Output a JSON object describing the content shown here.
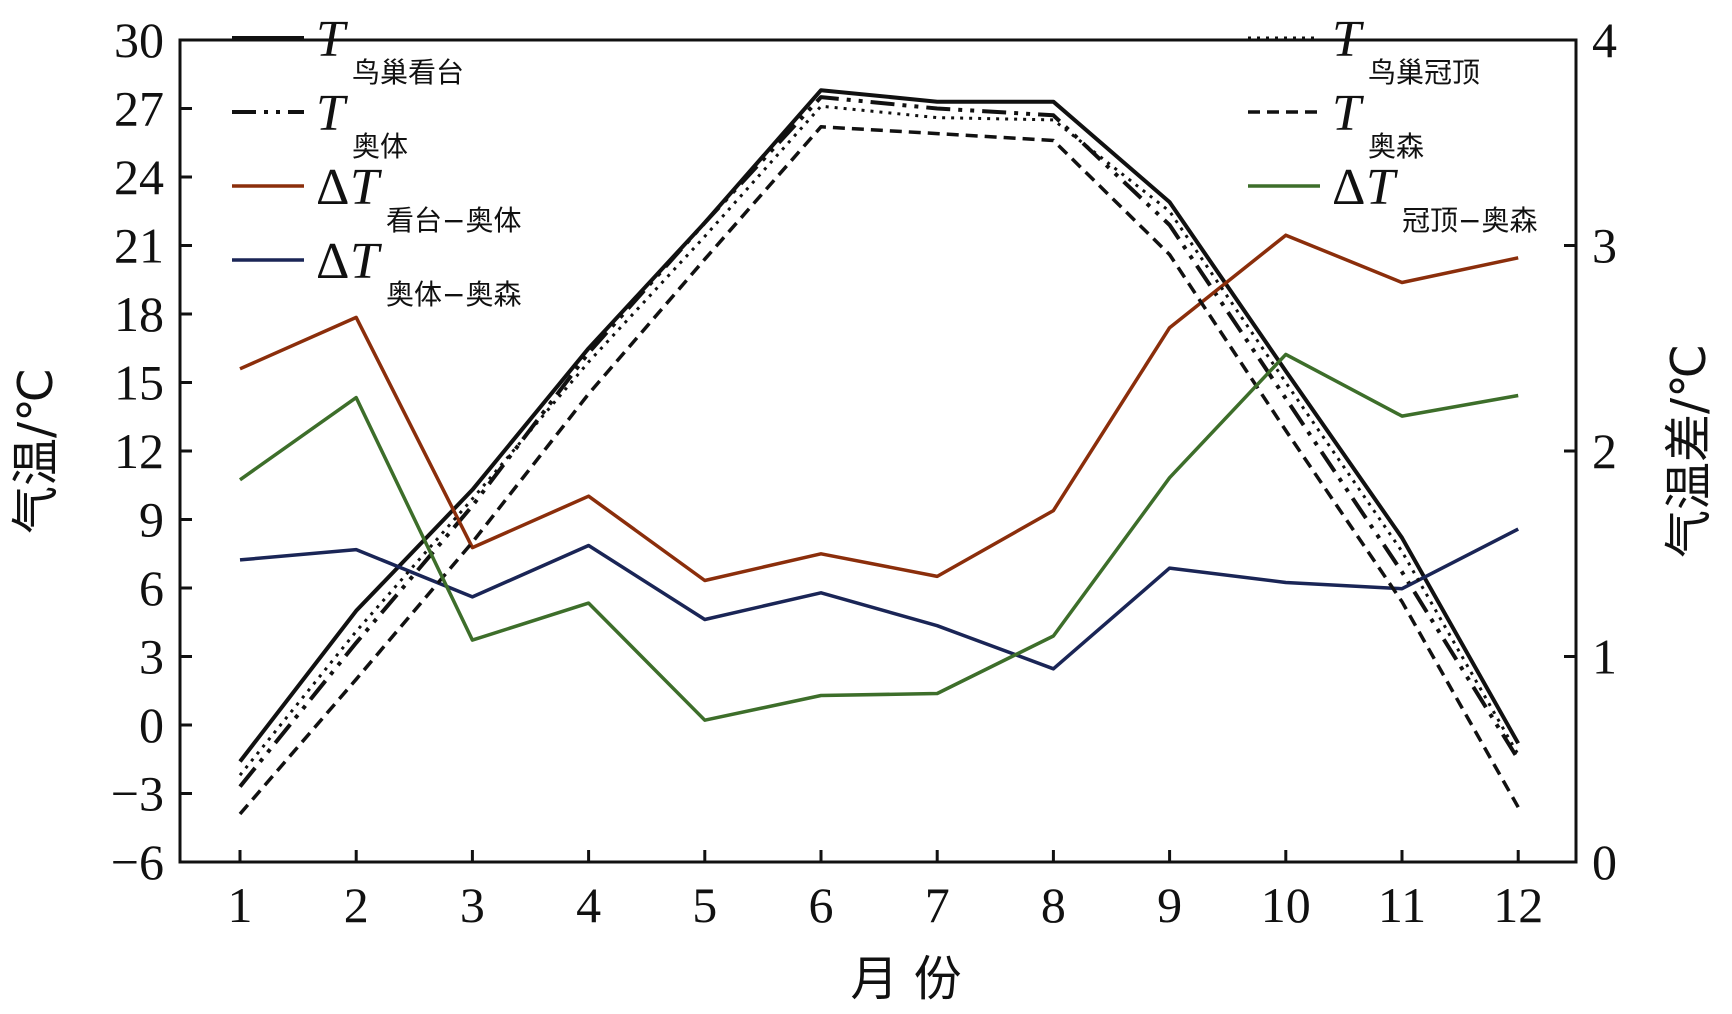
{
  "chart_data": {
    "type": "line",
    "categories": [
      "1",
      "2",
      "3",
      "4",
      "5",
      "6",
      "7",
      "8",
      "9",
      "10",
      "11",
      "12"
    ],
    "xlabel": "月 份",
    "ylabel": "气温/℃",
    "y2label": "气温差/℃",
    "ylim": [
      -6,
      30
    ],
    "yticks": [
      "30",
      "27",
      "24",
      "21",
      "18",
      "15",
      "12",
      "9",
      "6",
      "3",
      "0",
      "−3",
      "−6"
    ],
    "y2lim": [
      0,
      4
    ],
    "y2ticks": [
      "4",
      "3",
      "2",
      "1",
      "0"
    ],
    "grid": false,
    "series": [
      {
        "key": "t_nest_stand",
        "prefix": "",
        "symbol": "T",
        "sub": "鸟巢看台",
        "axis": "left",
        "color": "#111111",
        "dash": "",
        "width": 4,
        "values": [
          -1.6,
          5.0,
          10.3,
          16.5,
          22.0,
          27.8,
          27.3,
          27.3,
          22.9,
          15.5,
          8.2,
          -0.8
        ]
      },
      {
        "key": "t_olympic_center",
        "prefix": "",
        "symbol": "T",
        "sub": "奥体",
        "axis": "left",
        "color": "#111111",
        "dash": "24,8,4,8,4,8",
        "width": 4,
        "values": [
          -2.7,
          3.6,
          9.6,
          16.3,
          22.0,
          27.5,
          27.0,
          26.7,
          21.9,
          14.3,
          6.7,
          -1.5
        ]
      },
      {
        "key": "dt_stand_center",
        "prefix": "Δ",
        "symbol": "T",
        "sub": "看台−奥体",
        "axis": "right",
        "color": "#8b2e0b",
        "dash": "",
        "width": 3.5,
        "values": [
          2.4,
          2.65,
          1.53,
          1.78,
          1.37,
          1.5,
          1.39,
          1.71,
          2.6,
          3.05,
          2.82,
          2.94
        ]
      },
      {
        "key": "dt_center_forest",
        "prefix": "Δ",
        "symbol": "T",
        "sub": "奥体−奥森",
        "axis": "right",
        "color": "#1a2556",
        "dash": "",
        "width": 3.5,
        "values": [
          1.47,
          1.52,
          1.29,
          1.54,
          1.18,
          1.31,
          1.15,
          0.94,
          1.43,
          1.36,
          1.33,
          1.62
        ]
      },
      {
        "key": "t_nest_roof",
        "prefix": "",
        "symbol": "T",
        "sub": "鸟巢冠顶",
        "axis": "left",
        "color": "#111111",
        "dash": "3,6",
        "width": 3,
        "values": [
          -2.2,
          4.1,
          9.9,
          15.9,
          21.4,
          27.1,
          26.6,
          26.5,
          22.5,
          15.0,
          7.6,
          -1.3
        ]
      },
      {
        "key": "t_olympic_forest",
        "prefix": "",
        "symbol": "T",
        "sub": "奥森",
        "axis": "left",
        "color": "#111111",
        "dash": "12,7",
        "width": 3.5,
        "values": [
          -3.9,
          2.0,
          8.0,
          14.5,
          20.4,
          26.2,
          25.9,
          25.6,
          20.6,
          12.9,
          5.4,
          -3.6
        ]
      },
      {
        "key": "dt_roof_forest",
        "prefix": "Δ",
        "symbol": "T",
        "sub": "冠顶−奥森",
        "axis": "right",
        "color": "#3d6e2a",
        "dash": "",
        "width": 3.5,
        "values": [
          1.86,
          2.26,
          1.08,
          1.26,
          0.69,
          0.81,
          0.82,
          1.1,
          1.87,
          2.47,
          2.17,
          2.27
        ]
      }
    ]
  }
}
